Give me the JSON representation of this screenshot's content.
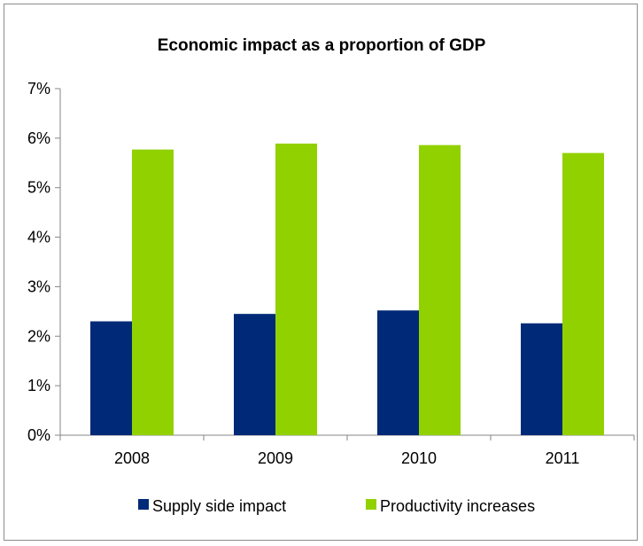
{
  "chart_data": {
    "type": "bar",
    "title": "Economic impact as a proportion of GDP",
    "xlabel": "",
    "ylabel": "",
    "categories": [
      "2008",
      "2009",
      "2010",
      "2011"
    ],
    "series": [
      {
        "name": "Supply side impact",
        "color": "#002a78",
        "values": [
          2.3,
          2.45,
          2.52,
          2.26
        ]
      },
      {
        "name": "Productivity increases",
        "color": "#92d100",
        "values": [
          5.77,
          5.89,
          5.86,
          5.7
        ]
      }
    ],
    "ylim": [
      0,
      7
    ],
    "yticks": [
      {
        "value": 0,
        "label": "0%"
      },
      {
        "value": 1,
        "label": "1%"
      },
      {
        "value": 2,
        "label": "2%"
      },
      {
        "value": 3,
        "label": "3%"
      },
      {
        "value": 4,
        "label": "4%"
      },
      {
        "value": 5,
        "label": "5%"
      },
      {
        "value": 6,
        "label": "6%"
      },
      {
        "value": 7,
        "label": "7%"
      }
    ],
    "grid": false,
    "legend": "bottom"
  }
}
